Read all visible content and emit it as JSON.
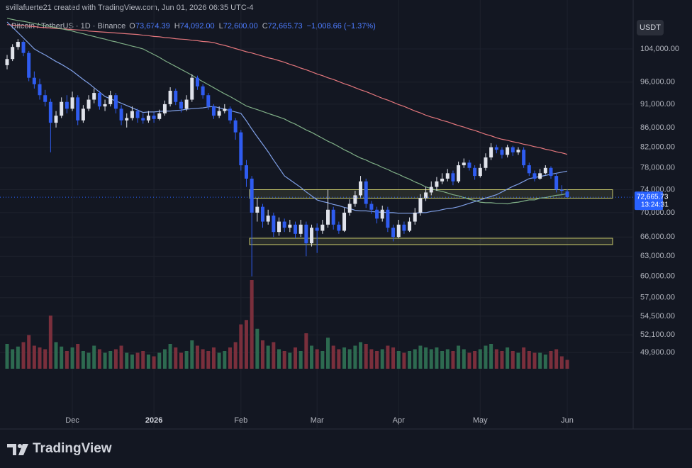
{
  "chart_data": {
    "type": "candlestick",
    "credit": "svillafuerte21 created with TradingView.com, Jun 01, 2026 06:35 UTC-4",
    "symbol": "Bitcoin / TetherUS · 1D · Binance",
    "ohlc_labels": [
      {
        "name": "O",
        "label": "73,674.39"
      },
      {
        "name": "H",
        "label": "74,092.00"
      },
      {
        "name": "L",
        "label": "72,600.00"
      },
      {
        "name": "C",
        "label": "72,665.73"
      }
    ],
    "change": "−1,008.66 (−1.37%)",
    "currency": "USDT",
    "last_price_label": "72,665.73",
    "countdown": "13:24:31",
    "brand": "TradingView",
    "log_scale": true,
    "grid": true,
    "up_color": "#e0e3eb",
    "down_color": "#2f5cf0",
    "volume_up_color": "#2d6a50",
    "volume_down_color": "#7a2f3c",
    "zone_color": "#c9c96a",
    "ylim": [
      43300,
      111200
    ],
    "yticks": [
      {
        "value": 104000,
        "label": "104,000.00"
      },
      {
        "value": 96000,
        "label": "96,000.00"
      },
      {
        "value": 91000,
        "label": "91,000.00"
      },
      {
        "value": 86000,
        "label": "86,000.00"
      },
      {
        "value": 82000,
        "label": "82,000.00"
      },
      {
        "value": 78000,
        "label": "78,000.00"
      },
      {
        "value": 74000,
        "label": "74,000.00"
      },
      {
        "value": 70000,
        "label": "70,000.00"
      },
      {
        "value": 66000,
        "label": "66,000.00"
      },
      {
        "value": 63000,
        "label": "63,000.00"
      },
      {
        "value": 60000,
        "label": "60,000.00"
      },
      {
        "value": 57000,
        "label": "57,000.00"
      },
      {
        "value": 54500,
        "label": "54,500.00"
      },
      {
        "value": 52100,
        "label": "52,100.00"
      },
      {
        "value": 49900,
        "label": "49,900.00"
      }
    ],
    "categories": [
      null,
      null,
      null,
      null,
      null,
      null,
      null,
      null,
      null,
      null,
      null,
      null,
      "Dec",
      null,
      null,
      null,
      null,
      null,
      null,
      null,
      null,
      null,
      null,
      null,
      null,
      null,
      null,
      "2026",
      null,
      null,
      null,
      null,
      null,
      null,
      null,
      null,
      null,
      null,
      null,
      null,
      null,
      null,
      null,
      "Feb",
      null,
      null,
      null,
      null,
      null,
      null,
      null,
      null,
      null,
      null,
      null,
      null,
      null,
      "Mar",
      null,
      null,
      null,
      null,
      null,
      null,
      null,
      null,
      null,
      null,
      null,
      null,
      null,
      null,
      "Apr",
      null,
      null,
      null,
      null,
      null,
      null,
      null,
      null,
      null,
      null,
      null,
      null,
      null,
      null,
      "May",
      null,
      null,
      null,
      null,
      null,
      null,
      null,
      null,
      null,
      null,
      null,
      null,
      null,
      null,
      null,
      "Jun"
    ],
    "candles": [
      [
        100000,
        102500,
        99000,
        101500
      ],
      [
        101500,
        105200,
        101000,
        104500
      ],
      [
        104500,
        106500,
        103800,
        105800
      ],
      [
        105800,
        106200,
        102200,
        103000
      ],
      [
        103000,
        103500,
        96200,
        97000
      ],
      [
        97000,
        98500,
        94500,
        95500
      ],
      [
        95500,
        96800,
        92000,
        93000
      ],
      [
        93000,
        94200,
        90500,
        91500
      ],
      [
        91500,
        92200,
        81000,
        87000
      ],
      [
        87000,
        89500,
        86000,
        88500
      ],
      [
        88500,
        92500,
        88000,
        91500
      ],
      [
        91500,
        93000,
        89000,
        90000
      ],
      [
        90000,
        93800,
        89500,
        92500
      ],
      [
        92500,
        93000,
        86500,
        87500
      ],
      [
        87500,
        90800,
        87000,
        90000
      ],
      [
        90000,
        93000,
        89500,
        92000
      ],
      [
        92000,
        94500,
        91200,
        93500
      ],
      [
        93500,
        94000,
        89800,
        90500
      ],
      [
        90500,
        92000,
        89500,
        91000
      ],
      [
        91000,
        94000,
        90500,
        93000
      ],
      [
        93000,
        93500,
        89000,
        90000
      ],
      [
        90000,
        90800,
        86500,
        87500
      ],
      [
        87500,
        89000,
        86000,
        88000
      ],
      [
        88000,
        90500,
        87500,
        89500
      ],
      [
        89500,
        90000,
        87000,
        88000
      ],
      [
        88000,
        89000,
        86800,
        87500
      ],
      [
        87500,
        89500,
        87000,
        88500
      ],
      [
        88500,
        89200,
        87000,
        87800
      ],
      [
        87800,
        89800,
        87500,
        89000
      ],
      [
        89000,
        91800,
        88500,
        91000
      ],
      [
        91000,
        94800,
        90500,
        94000
      ],
      [
        94000,
        94500,
        90800,
        91500
      ],
      [
        91500,
        92000,
        89200,
        90000
      ],
      [
        90000,
        93000,
        89500,
        92000
      ],
      [
        92000,
        97800,
        91500,
        97000
      ],
      [
        97000,
        97500,
        94200,
        95000
      ],
      [
        95000,
        95500,
        92200,
        93000
      ],
      [
        93000,
        93500,
        89800,
        90500
      ],
      [
        90500,
        91000,
        87800,
        88500
      ],
      [
        88500,
        90500,
        88000,
        89500
      ],
      [
        89500,
        91000,
        89000,
        90000
      ],
      [
        90000,
        90500,
        86800,
        87500
      ],
      [
        87500,
        88000,
        83500,
        85000
      ],
      [
        85000,
        85500,
        77500,
        78500
      ],
      [
        78500,
        79500,
        74500,
        76000
      ],
      [
        76000,
        76500,
        60000,
        70000
      ],
      [
        70000,
        72500,
        68500,
        71000
      ],
      [
        71000,
        71500,
        67500,
        68500
      ],
      [
        68500,
        70500,
        68000,
        69500
      ],
      [
        69500,
        70000,
        66000,
        66800
      ],
      [
        66800,
        69200,
        66200,
        68500
      ],
      [
        68500,
        69000,
        66800,
        67500
      ],
      [
        67500,
        68800,
        66800,
        68000
      ],
      [
        68000,
        68500,
        65800,
        66500
      ],
      [
        66500,
        68800,
        66000,
        68000
      ],
      [
        68000,
        68500,
        63000,
        65000
      ],
      [
        65000,
        68000,
        64500,
        67500
      ],
      [
        67500,
        68200,
        63500,
        67000
      ],
      [
        67000,
        68800,
        66500,
        68000
      ],
      [
        68000,
        74000,
        67500,
        70500
      ],
      [
        70500,
        71000,
        67200,
        68000
      ],
      [
        68000,
        68500,
        66500,
        67000
      ],
      [
        67000,
        70800,
        66800,
        70000
      ],
      [
        70000,
        72300,
        69500,
        71500
      ],
      [
        71500,
        73800,
        71000,
        73000
      ],
      [
        73000,
        76500,
        72500,
        75500
      ],
      [
        75500,
        76000,
        70800,
        71500
      ],
      [
        71500,
        72000,
        69800,
        70500
      ],
      [
        70500,
        71000,
        68200,
        69000
      ],
      [
        69000,
        71200,
        68500,
        70500
      ],
      [
        70500,
        71000,
        66800,
        67500
      ],
      [
        67500,
        68000,
        65300,
        66000
      ],
      [
        66000,
        68800,
        65800,
        68000
      ],
      [
        68000,
        68500,
        66500,
        67000
      ],
      [
        67000,
        69200,
        66800,
        68500
      ],
      [
        68500,
        70800,
        68000,
        70000
      ],
      [
        70000,
        73200,
        69500,
        72500
      ],
      [
        72500,
        74500,
        72000,
        73500
      ],
      [
        73500,
        75500,
        73000,
        74500
      ],
      [
        74500,
        76300,
        73800,
        75500
      ],
      [
        75500,
        77000,
        75000,
        76000
      ],
      [
        76000,
        77800,
        75500,
        77000
      ],
      [
        77000,
        77500,
        74800,
        75500
      ],
      [
        75500,
        79200,
        75200,
        78500
      ],
      [
        78500,
        79800,
        78000,
        79000
      ],
      [
        79000,
        79500,
        77500,
        78000
      ],
      [
        78000,
        78500,
        75800,
        76500
      ],
      [
        76500,
        78800,
        76200,
        78000
      ],
      [
        78000,
        80800,
        77500,
        80000
      ],
      [
        80000,
        82800,
        79500,
        82000
      ],
      [
        82000,
        82500,
        80800,
        81500
      ],
      [
        81500,
        82000,
        79800,
        80500
      ],
      [
        80500,
        82500,
        80000,
        82000
      ],
      [
        82000,
        82300,
        80300,
        81000
      ],
      [
        81000,
        82000,
        80500,
        81500
      ],
      [
        81500,
        82000,
        78000,
        78500
      ],
      [
        78500,
        79000,
        76500,
        77000
      ],
      [
        77000,
        77500,
        75500,
        76000
      ],
      [
        76000,
        77800,
        75800,
        77000
      ],
      [
        77000,
        78500,
        76800,
        78000
      ],
      [
        78000,
        78300,
        76000,
        76500
      ],
      [
        76500,
        77000,
        73500,
        74000
      ],
      [
        74000,
        74800,
        73200,
        73800
      ],
      [
        73674.39,
        74092,
        72600,
        72665.73
      ]
    ],
    "volume": [
      28,
      22,
      25,
      30,
      38,
      26,
      24,
      22,
      60,
      30,
      25,
      20,
      24,
      28,
      20,
      18,
      26,
      22,
      18,
      20,
      22,
      26,
      18,
      16,
      18,
      20,
      16,
      14,
      18,
      22,
      28,
      24,
      18,
      20,
      32,
      26,
      22,
      20,
      24,
      18,
      20,
      24,
      30,
      50,
      55,
      100,
      45,
      32,
      26,
      30,
      22,
      20,
      18,
      24,
      20,
      40,
      26,
      22,
      20,
      35,
      26,
      22,
      24,
      22,
      26,
      30,
      28,
      22,
      20,
      22,
      26,
      24,
      20,
      18,
      20,
      22,
      26,
      24,
      22,
      24,
      20,
      22,
      20,
      26,
      22,
      18,
      20,
      22,
      26,
      28,
      22,
      20,
      24,
      20,
      18,
      24,
      20,
      18,
      18,
      16,
      20,
      22,
      14,
      10
    ],
    "series": [
      {
        "color": "#e3767c",
        "values": [
          110300,
          110200,
          110100,
          110000,
          109900,
          109800,
          109600,
          109500,
          109400,
          109300,
          109200,
          109100,
          109000,
          108900,
          108800,
          108600,
          108500,
          108400,
          108300,
          108200,
          108100,
          108000,
          107900,
          107800,
          107700,
          107500,
          107400,
          107200,
          107100,
          106900,
          106800,
          106600,
          106500,
          106400,
          106200,
          106100,
          105900,
          105800,
          105600,
          105200,
          104900,
          104500,
          104100,
          103700,
          103300,
          103000,
          102600,
          102200,
          101800,
          101500,
          101100,
          100700,
          100200,
          99800,
          99300,
          98900,
          98400,
          97900,
          97500,
          97000,
          96600,
          96100,
          95600,
          95200,
          94700,
          94200,
          93800,
          93300,
          92800,
          92300,
          91900,
          91400,
          90900,
          90500,
          90000,
          89500,
          89100,
          88600,
          88200,
          87900,
          87500,
          87200,
          86800,
          86400,
          86100,
          85700,
          85400,
          85000,
          84600,
          84300,
          83900,
          83600,
          83400,
          83100,
          82900,
          82600,
          82400,
          82100,
          81900,
          81600,
          81400,
          81100,
          80900,
          80600
        ]
      },
      {
        "color": "#7fae86",
        "values": [
          112000,
          111700,
          111400,
          111200,
          110900,
          110600,
          110300,
          110000,
          109800,
          109500,
          109200,
          108900,
          108600,
          108200,
          107900,
          107500,
          107200,
          106800,
          106500,
          106100,
          105800,
          105400,
          105100,
          104700,
          104400,
          104000,
          103300,
          102600,
          101900,
          101100,
          100400,
          99700,
          99000,
          98300,
          97600,
          96800,
          96100,
          95400,
          94700,
          94000,
          93300,
          92700,
          92000,
          91300,
          90600,
          90200,
          89800,
          89400,
          89000,
          88600,
          88200,
          87800,
          87200,
          86700,
          86100,
          85500,
          85000,
          84400,
          83800,
          83200,
          82700,
          82100,
          81500,
          81000,
          80400,
          79900,
          79500,
          79000,
          78600,
          78100,
          77700,
          77200,
          76800,
          76300,
          75900,
          75400,
          75000,
          74500,
          74200,
          73900,
          73700,
          73400,
          73100,
          72900,
          72600,
          72300,
          72100,
          71800,
          71700,
          71700,
          71600,
          71600,
          71500,
          71700,
          71800,
          72000,
          72200,
          72200,
          72500,
          72600,
          72800,
          73000,
          73100,
          73300
        ]
      },
      {
        "color": "#7f9fe6",
        "values": [
          111000,
          109600,
          108200,
          106800,
          105400,
          104000,
          103200,
          102500,
          101700,
          100900,
          100200,
          99400,
          98600,
          97600,
          96600,
          95700,
          94700,
          93700,
          92700,
          92200,
          91700,
          91200,
          90700,
          90200,
          89700,
          89200,
          89300,
          89300,
          89400,
          89500,
          89500,
          89600,
          89700,
          89900,
          90000,
          90100,
          90200,
          90400,
          90500,
          90200,
          89900,
          89600,
          89300,
          89000,
          87400,
          85700,
          84100,
          82600,
          81100,
          79500,
          78000,
          76500,
          75800,
          75100,
          74400,
          73600,
          72900,
          72200,
          71900,
          71700,
          71400,
          71200,
          70900,
          70700,
          70400,
          70300,
          70300,
          70200,
          70100,
          70100,
          70000,
          70000,
          69900,
          69900,
          69900,
          69900,
          70000,
          70000,
          70200,
          70300,
          70500,
          70700,
          70800,
          71000,
          71300,
          71600,
          71900,
          72200,
          72500,
          72800,
          73100,
          73600,
          74100,
          74600,
          75000,
          75500,
          76000,
          76200,
          76400,
          76600,
          76800,
          77000,
          77200,
          77400
        ]
      }
    ],
    "zones": [
      {
        "low": 72500,
        "high": 74000
      },
      {
        "low": 64800,
        "high": 65800
      }
    ]
  }
}
